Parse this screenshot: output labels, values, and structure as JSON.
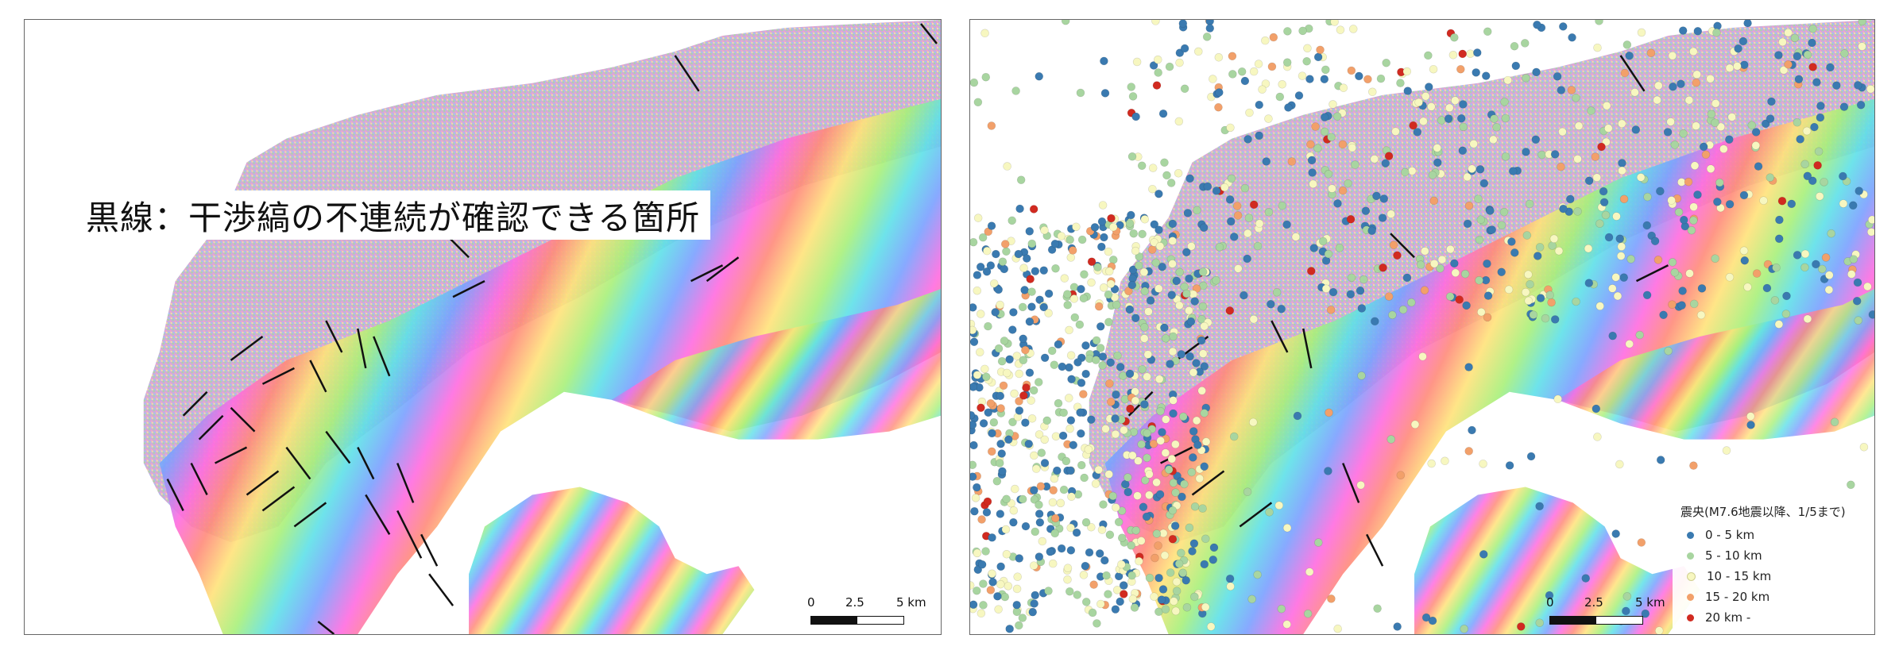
{
  "left_panel": {
    "annotation": "黒線：干渉縞の不連続が確認できる箇所",
    "scale": {
      "ticks": [
        "0",
        "2.5",
        "5 km"
      ]
    }
  },
  "right_panel": {
    "scale": {
      "ticks": [
        "0",
        "2.5",
        "5 km"
      ]
    },
    "legend": {
      "title": "震央(M7.6地震以降、1/5まで)",
      "items": [
        {
          "label": "0 - 5  km",
          "color": "#3a7ab0"
        },
        {
          "label": "5 - 10  km",
          "color": "#a8d5a0"
        },
        {
          "label": "10 - 15  km",
          "color": "#f7f7c0"
        },
        {
          "label": "15 - 20  km",
          "color": "#f2a06a"
        },
        {
          "label": "20  km  -",
          "color": "#d12a20"
        }
      ]
    }
  },
  "colors": {
    "fringe_stops": [
      "#ff6be0",
      "#ff7a8a",
      "#ffe27a",
      "#a8f07a",
      "#5ee0e8",
      "#6fa8ff",
      "#c86bff"
    ],
    "discontinuity_line": "#111111",
    "frame": "#666666"
  }
}
